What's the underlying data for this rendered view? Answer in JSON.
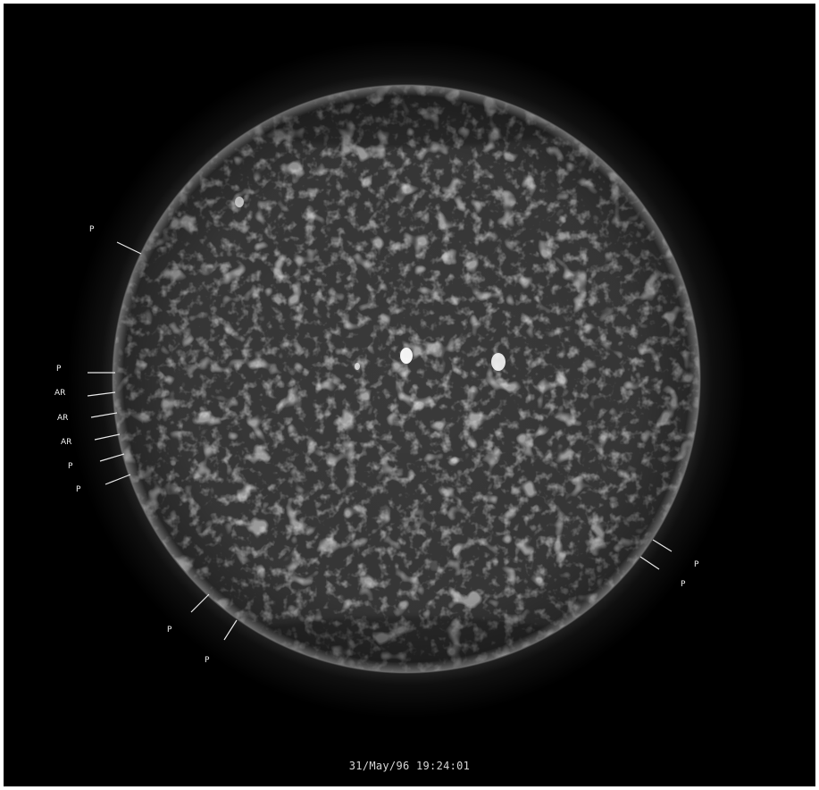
{
  "image": {
    "timestamp": "31/May/96 19:24:01",
    "annotations": [
      {
        "id": "p-nw",
        "text": "P"
      },
      {
        "id": "p-w1",
        "text": "P"
      },
      {
        "id": "ar-w1",
        "text": "AR"
      },
      {
        "id": "ar-w2",
        "text": "AR"
      },
      {
        "id": "ar-w3",
        "text": "AR"
      },
      {
        "id": "p-w2",
        "text": "P"
      },
      {
        "id": "p-w3",
        "text": "P"
      },
      {
        "id": "p-sw1",
        "text": "P"
      },
      {
        "id": "p-sw2",
        "text": "P"
      },
      {
        "id": "p-se1",
        "text": "P"
      },
      {
        "id": "p-se2",
        "text": "P"
      }
    ]
  }
}
